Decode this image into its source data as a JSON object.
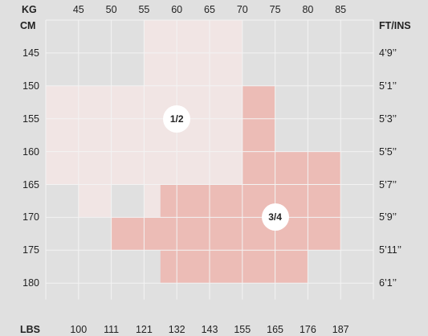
{
  "chart_data": {
    "type": "heatmap",
    "axes": {
      "top_x_title": "KG",
      "top_x_ticks": [
        "45",
        "50",
        "55",
        "60",
        "65",
        "70",
        "75",
        "80",
        "85"
      ],
      "bottom_x_title": "LBS",
      "bottom_x_ticks": [
        "100",
        "111",
        "121",
        "132",
        "143",
        "155",
        "165",
        "176",
        "187"
      ],
      "left_y_title": "CM",
      "left_y_ticks": [
        "145",
        "150",
        "155",
        "160",
        "165",
        "170",
        "175",
        "180"
      ],
      "right_y_title": "FT/INS",
      "right_y_ticks": [
        "4’9’’",
        "5’1’’",
        "5’3’’",
        "5’5’’",
        "5’7’’",
        "5’9’’",
        "5’11’’",
        "6’1’’"
      ]
    },
    "x_range_kg": [
      40,
      90
    ],
    "y_range_cm": [
      140,
      182.5
    ],
    "grid": true,
    "colors": {
      "background": "#e0e0e0",
      "grid": "#f3f3f3",
      "size_1_2": "#f1e5e4",
      "size_3_4": "#ecbcb6",
      "badge": "#ffffff"
    },
    "series": [
      {
        "name": "1/2",
        "regions_kg_cm": [
          [
            55,
            70,
            140,
            150
          ],
          [
            40,
            70,
            150,
            165
          ],
          [
            45,
            50,
            165,
            170
          ],
          [
            55,
            57.5,
            165,
            170
          ]
        ],
        "label_at": [
          60,
          155
        ]
      },
      {
        "name": "3/4",
        "regions_kg_cm": [
          [
            70,
            75,
            150,
            160
          ],
          [
            70,
            85,
            160,
            165
          ],
          [
            57.5,
            85,
            165,
            170
          ],
          [
            50,
            85,
            170,
            175
          ],
          [
            57.5,
            80,
            175,
            180
          ]
        ],
        "label_at": [
          75,
          170
        ]
      }
    ]
  }
}
